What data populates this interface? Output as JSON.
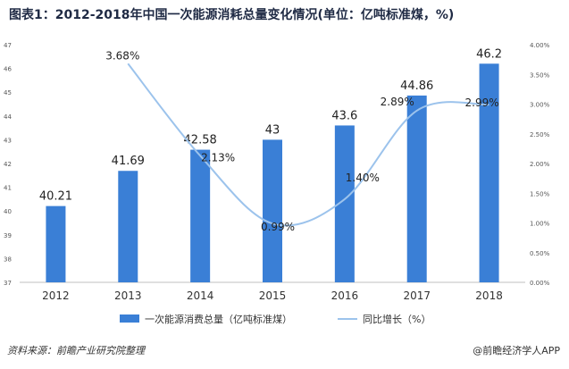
{
  "title": "图表1：2012-2018年中国一次能源消耗总量变化情况(单位：亿吨标准煤，%)",
  "source": "资料来源：前瞻产业研究院整理",
  "credit": "@前瞻经济学人APP",
  "watermark": "前瞻产业研究院",
  "colors": {
    "bar": "#3a7fd6",
    "line": "#9cc3ec"
  },
  "chart_data": {
    "type": "bar",
    "categories": [
      "2012",
      "2013",
      "2014",
      "2015",
      "2016",
      "2017",
      "2018"
    ],
    "series": [
      {
        "name": "一次能源消费总量（亿吨标准煤）",
        "type": "bar",
        "axis": "left",
        "values": [
          40.21,
          41.69,
          42.58,
          43,
          43.6,
          44.86,
          46.2
        ],
        "labels": [
          "40.21",
          "41.69",
          "42.58",
          "43",
          "43.6",
          "44.86",
          "46.2"
        ]
      },
      {
        "name": "同比增长（%）",
        "type": "line",
        "axis": "right",
        "values": [
          null,
          3.68,
          2.13,
          0.99,
          1.4,
          2.89,
          2.99
        ],
        "labels": [
          "",
          "3.68%",
          "2.13%",
          "0.99%",
          "1.40%",
          "2.89%",
          "2.99%"
        ]
      }
    ],
    "y_left": {
      "min": 37,
      "max": 47,
      "ticks": [
        "37",
        "38",
        "39",
        "40",
        "41",
        "42",
        "43",
        "44",
        "45",
        "46",
        "47"
      ]
    },
    "y_right": {
      "min": 0,
      "max": 4,
      "ticks": [
        "0.00%",
        "0.50%",
        "1.00%",
        "1.50%",
        "2.00%",
        "2.50%",
        "3.00%",
        "3.50%",
        "4.00%"
      ]
    },
    "grid": false,
    "legend": "bottom"
  }
}
